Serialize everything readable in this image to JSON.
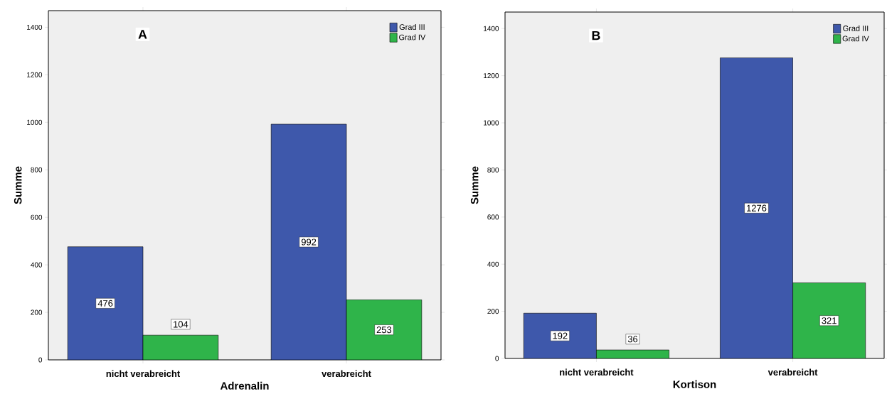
{
  "chart_data": [
    {
      "type": "bar",
      "title": "A",
      "xlabel": "Adrenalin",
      "ylabel": "Summe",
      "categories": [
        "nicht verabreicht",
        "verabreicht"
      ],
      "series": [
        {
          "name": "Grad III",
          "color": "#3e58ab",
          "values": [
            476,
            992
          ]
        },
        {
          "name": "Grad IV",
          "color": "#2fb44a",
          "values": [
            104,
            253
          ]
        }
      ],
      "ylim": [
        0,
        1470
      ],
      "yticks": [
        0,
        200,
        400,
        600,
        800,
        1000,
        1200,
        1400
      ],
      "data_labels": true,
      "legend": "top right"
    },
    {
      "type": "bar",
      "title": "B",
      "xlabel": "Kortison",
      "ylabel": "Summe",
      "categories": [
        "nicht verabreicht",
        "verabreicht"
      ],
      "series": [
        {
          "name": "Grad III",
          "color": "#3e58ab",
          "values": [
            192,
            1276
          ]
        },
        {
          "name": "Grad IV",
          "color": "#2fb44a",
          "values": [
            36,
            321
          ]
        }
      ],
      "ylim": [
        0,
        1470
      ],
      "yticks": [
        0,
        200,
        400,
        600,
        800,
        1000,
        1200,
        1400
      ],
      "data_labels": true,
      "legend": "top right"
    }
  ]
}
